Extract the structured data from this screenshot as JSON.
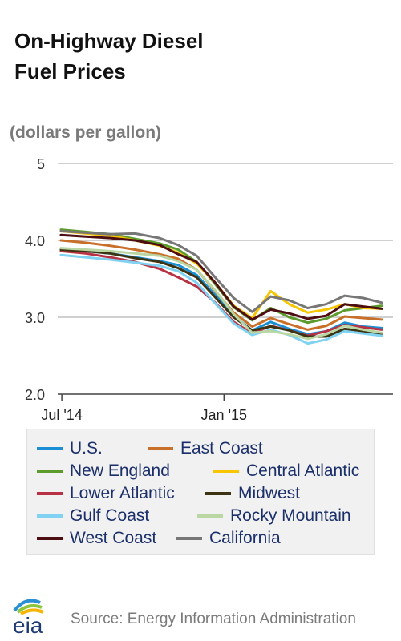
{
  "title_line1": "On-Highway Diesel",
  "title_line2": "Fuel Prices",
  "unit_label": "(dollars per gallon)",
  "source": "Source: Energy Information Administration",
  "logo_text": "eia",
  "chart_data": {
    "type": "line",
    "title": "On-Highway Diesel Fuel Prices",
    "ylabel": "(dollars per gallon)",
    "ylim": [
      2.0,
      5.0
    ],
    "yticks": [
      "2.0",
      "3.0",
      "4.0",
      "5"
    ],
    "ytick_values": [
      2.0,
      3.0,
      4.0,
      5.0
    ],
    "xlim": [
      "2014-06-30",
      "2015-06-29"
    ],
    "xticks": [
      {
        "label": "Jul '14",
        "date": "2014-07-01"
      },
      {
        "label": "Jan '15",
        "date": "2015-01-01"
      }
    ],
    "grid": true,
    "legend": "bottom",
    "x": [
      "2014-06-30",
      "2014-07-28",
      "2014-08-25",
      "2014-09-22",
      "2014-10-20",
      "2014-11-10",
      "2014-12-01",
      "2014-12-22",
      "2015-01-12",
      "2015-02-02",
      "2015-02-23",
      "2015-03-16",
      "2015-04-06",
      "2015-04-27",
      "2015-05-18",
      "2015-06-08",
      "2015-06-29"
    ],
    "series": [
      {
        "name": "U.S.",
        "color": "#1a8fd6",
        "values": [
          3.88,
          3.86,
          3.83,
          3.78,
          3.73,
          3.68,
          3.55,
          3.29,
          3.02,
          2.83,
          2.94,
          2.85,
          2.78,
          2.82,
          2.93,
          2.88,
          2.86
        ]
      },
      {
        "name": "East Coast",
        "color": "#c8702a",
        "values": [
          4.0,
          3.97,
          3.93,
          3.88,
          3.82,
          3.76,
          3.62,
          3.34,
          3.06,
          2.88,
          2.99,
          2.91,
          2.84,
          2.89,
          3.01,
          2.99,
          2.97
        ]
      },
      {
        "name": "New England",
        "color": "#5d9b2c",
        "values": [
          4.14,
          4.11,
          4.08,
          4.02,
          3.96,
          3.88,
          3.72,
          3.43,
          3.13,
          2.96,
          3.12,
          3.0,
          2.93,
          2.98,
          3.09,
          3.12,
          3.15
        ]
      },
      {
        "name": "Central Atlantic",
        "color": "#f7c600",
        "values": [
          4.12,
          4.09,
          4.06,
          4.0,
          3.93,
          3.84,
          3.7,
          3.45,
          3.15,
          2.99,
          3.34,
          3.17,
          3.06,
          3.1,
          3.17,
          3.12,
          3.11
        ]
      },
      {
        "name": "Lower Atlantic",
        "color": "#b83245",
        "values": [
          3.86,
          3.83,
          3.78,
          3.72,
          3.63,
          3.52,
          3.4,
          3.19,
          2.94,
          2.79,
          2.89,
          2.83,
          2.76,
          2.82,
          2.9,
          2.87,
          2.84
        ]
      },
      {
        "name": "Midwest",
        "color": "#3c3313",
        "values": [
          3.88,
          3.86,
          3.83,
          3.77,
          3.72,
          3.64,
          3.52,
          3.26,
          3.0,
          2.83,
          2.88,
          2.83,
          2.75,
          2.75,
          2.85,
          2.82,
          2.79
        ]
      },
      {
        "name": "Gulf Coast",
        "color": "#7fd2f2",
        "values": [
          3.81,
          3.78,
          3.75,
          3.71,
          3.67,
          3.6,
          3.45,
          3.18,
          2.92,
          2.77,
          2.84,
          2.77,
          2.66,
          2.71,
          2.82,
          2.79,
          2.76
        ]
      },
      {
        "name": "Rocky Mountain",
        "color": "#b9d6a3",
        "values": [
          3.9,
          3.88,
          3.86,
          3.83,
          3.8,
          3.73,
          3.62,
          3.35,
          3.04,
          2.8,
          2.82,
          2.78,
          2.72,
          2.78,
          2.89,
          2.84,
          2.8
        ]
      },
      {
        "name": "West Coast",
        "color": "#4c0e12",
        "values": [
          4.07,
          4.05,
          4.03,
          4.0,
          3.94,
          3.82,
          3.72,
          3.45,
          3.14,
          2.97,
          3.1,
          3.05,
          2.98,
          3.02,
          3.17,
          3.14,
          3.11
        ]
      },
      {
        "name": "California",
        "color": "#777777",
        "values": [
          4.12,
          4.1,
          4.08,
          4.09,
          4.03,
          3.94,
          3.8,
          3.52,
          3.25,
          3.07,
          3.27,
          3.22,
          3.12,
          3.17,
          3.28,
          3.25,
          3.19
        ]
      }
    ]
  }
}
